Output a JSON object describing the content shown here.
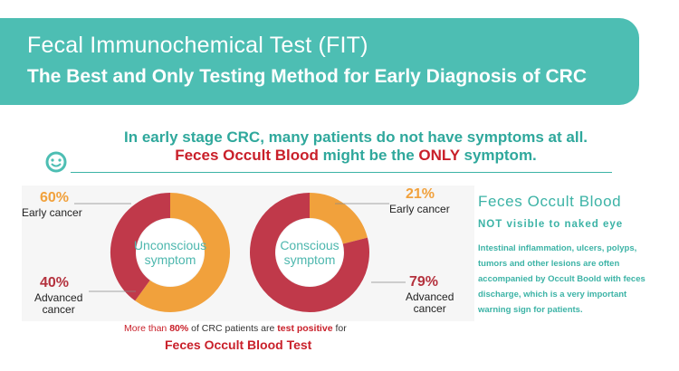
{
  "banner": {
    "title": "Fecal Immunochemical Test (FIT)",
    "subtitle": "The Best and Only Testing Method for Early Diagnosis of CRC"
  },
  "intro": {
    "line1": "In early stage CRC, many patients do not have symptoms at all.",
    "line2_red1": "Feces Occult Blood",
    "line2_mid": " might be the ",
    "line2_red2": "ONLY",
    "line2_end": " symptom."
  },
  "chart_data": [
    {
      "type": "pie",
      "title": "Unconscious symptom",
      "categories": [
        "Early cancer",
        "Advanced cancer"
      ],
      "values": [
        60,
        40
      ],
      "labels": [
        "60%",
        "40%"
      ]
    },
    {
      "type": "pie",
      "title": "Conscious symptom",
      "categories": [
        "Early cancer",
        "Advanced cancer"
      ],
      "values": [
        21,
        79
      ],
      "labels": [
        "21%",
        "79%"
      ]
    }
  ],
  "colors": {
    "teal": "#4dbeb3",
    "orange": "#f1a13c",
    "dark_red": "#c0394a",
    "red_text": "#c9202a"
  },
  "left_chart": {
    "center_line1": "Unconscious",
    "center_line2": "symptom",
    "early_pct": "60%",
    "early_label": "Early cancer",
    "adv_pct": "40%",
    "adv_label1": "Advanced",
    "adv_label2": "cancer"
  },
  "right_chart": {
    "center_line1": "Conscious",
    "center_line2": "symptom",
    "early_pct": "21%",
    "early_label": "Early cancer",
    "adv_pct": "79%",
    "adv_label1": "Advanced",
    "adv_label2": "cancer"
  },
  "footer": {
    "part1": "More than ",
    "part2_red": "80%",
    "part3": " of CRC patients are ",
    "part4_red": "test positive",
    "part5": " for",
    "line2": "Feces Occult Blood Test"
  },
  "side": {
    "title": "Feces Occult Blood",
    "subtitle": "NOT visible to naked eye",
    "body": "Intestinal inflammation, ulcers, polyps, tumors and other lesions are often accompanied by Occult Boold with feces discharge, which is a very important warning sign for patients."
  }
}
